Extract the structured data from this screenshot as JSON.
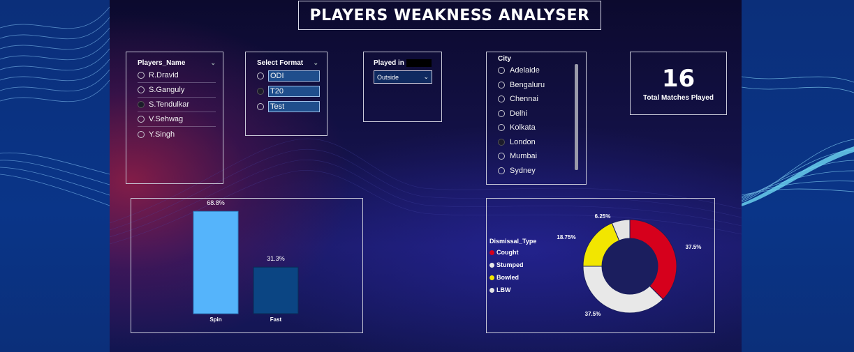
{
  "title": "PLAYERS WEAKNESS ANALYSER",
  "players": {
    "header": "Players_Name",
    "items": [
      "R.Dravid",
      "S.Ganguly",
      "S.Tendulkar",
      "V.Sehwag",
      "Y.Singh"
    ],
    "selected": "S.Tendulkar"
  },
  "format": {
    "header": "Select Format",
    "items": [
      "ODI",
      "T20",
      "Test"
    ],
    "selected": "T20"
  },
  "played_in": {
    "header": "Played in",
    "value": "Outside"
  },
  "city": {
    "header": "City",
    "items": [
      "Adelaide",
      "Bengaluru",
      "Chennai",
      "Delhi",
      "Kolkata",
      "London",
      "Mumbai",
      "Sydney"
    ],
    "selected": "London"
  },
  "card": {
    "value": "16",
    "label": "Total Matches Played"
  },
  "colors": {
    "spin": "#55b4fb",
    "fast": "#0b4583",
    "caught": "#d6001c",
    "stumped": "#e8e8e8",
    "bowled": "#f2e600",
    "lbw": "#e4e4e4"
  },
  "chart_data": [
    {
      "type": "bar",
      "categories": [
        "Spin",
        "Fast"
      ],
      "values": [
        68.8,
        31.3
      ],
      "data_labels": [
        "68.8%",
        "31.3%"
      ],
      "title": "",
      "xlabel": "",
      "ylabel": "",
      "ylim": [
        0,
        75
      ]
    },
    {
      "type": "pie",
      "donut": true,
      "legend_title": "Dismissal_Type",
      "categories": [
        "Cought",
        "Stumped",
        "Bowled",
        "LBW"
      ],
      "values": [
        37.5,
        37.5,
        18.75,
        6.25
      ],
      "data_labels": [
        "37.5%",
        "37.5%",
        "18.75%",
        "6.25%"
      ],
      "legend_position": "left"
    }
  ]
}
